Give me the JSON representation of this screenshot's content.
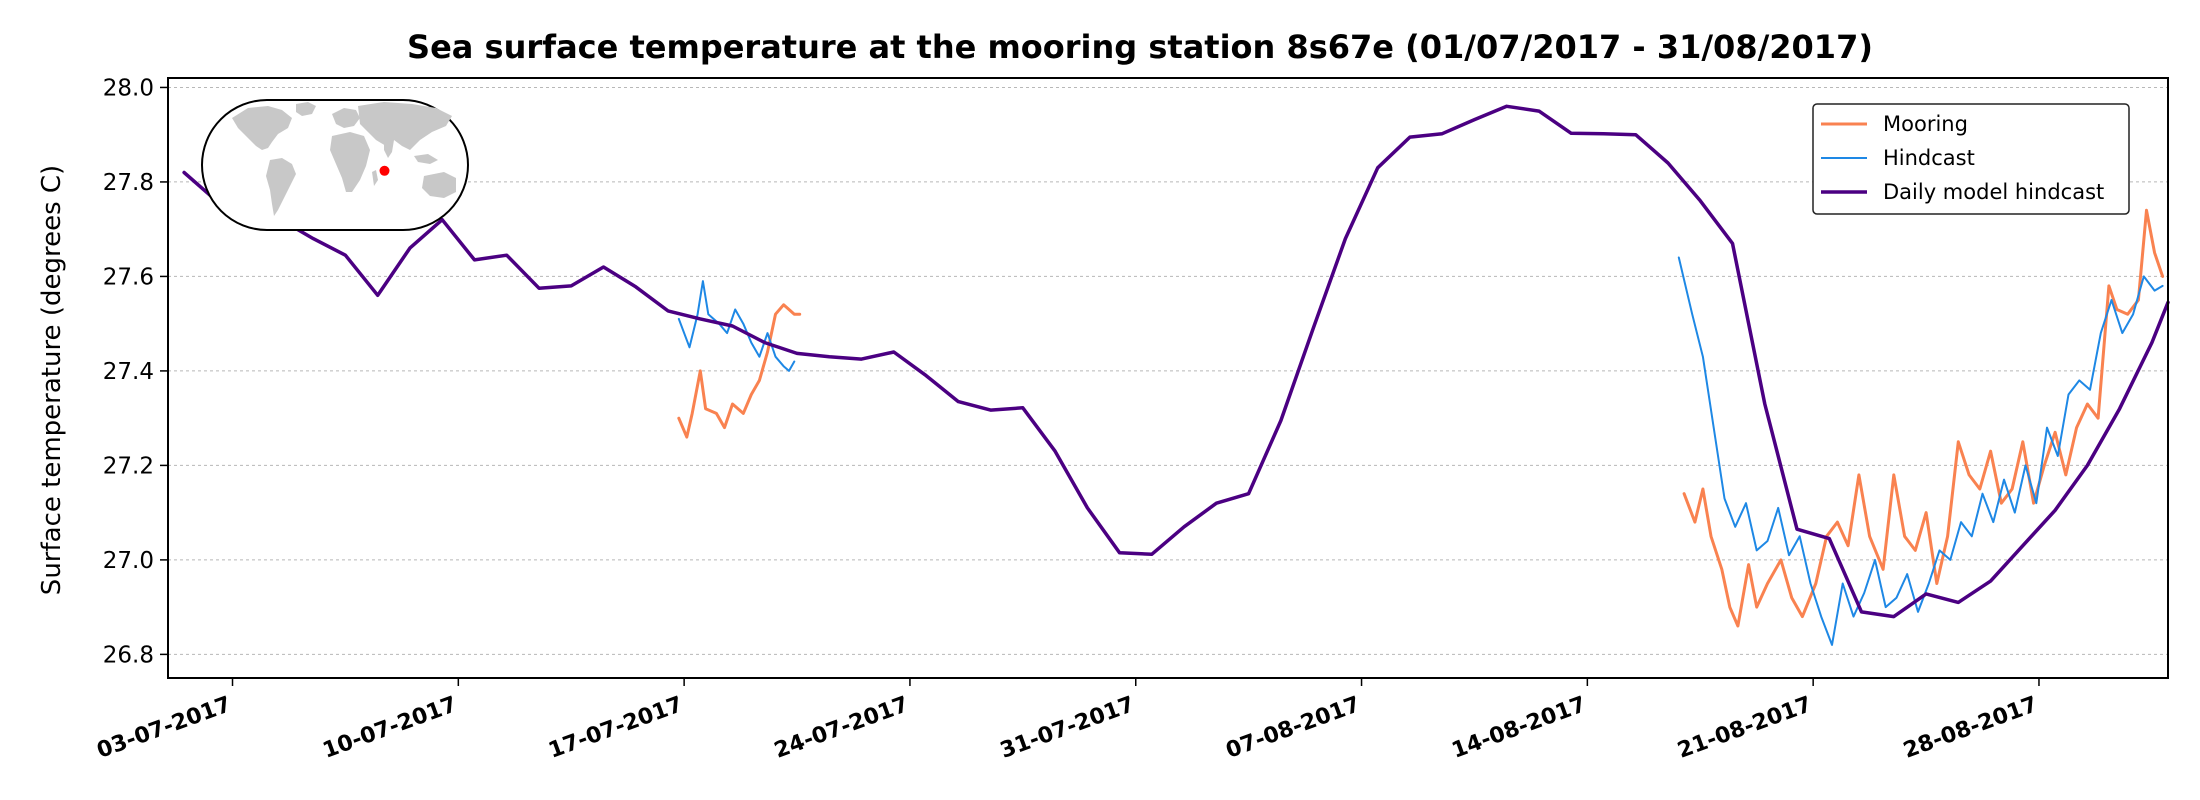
{
  "chart_data": {
    "type": "line",
    "title": "Sea surface temperature at the mooring station 8s67e (01/07/2017 - 31/08/2017)",
    "xlabel": "",
    "ylabel": "Surface temperature (degrees C)",
    "xlim": [
      "2017-07-01T00:00",
      "2017-09-01T00:00"
    ],
    "ylim": [
      26.75,
      28.02
    ],
    "yticks": [
      "26.8",
      "27.0",
      "27.2",
      "27.4",
      "27.6",
      "27.8",
      "28.0"
    ],
    "xticks": [
      {
        "date": "2017-07-03",
        "label": "03-07-2017"
      },
      {
        "date": "2017-07-10",
        "label": "10-07-2017"
      },
      {
        "date": "2017-07-17",
        "label": "17-07-2017"
      },
      {
        "date": "2017-07-24",
        "label": "24-07-2017"
      },
      {
        "date": "2017-07-31",
        "label": "31-07-2017"
      },
      {
        "date": "2017-08-07",
        "label": "07-08-2017"
      },
      {
        "date": "2017-08-14",
        "label": "14-08-2017"
      },
      {
        "date": "2017-08-21",
        "label": "21-08-2017"
      },
      {
        "date": "2017-08-28",
        "label": "28-08-2017"
      }
    ],
    "grid": "horizontal-dotted",
    "legend_position": "top-right",
    "inset_map": {
      "marker_lon": 67,
      "marker_lat": -8,
      "marker_color": "#ff0000",
      "land_color": "#c8c8c8"
    },
    "series": [
      {
        "name": "Mooring",
        "color": "#f98250",
        "points": [
          [
            "2017-07-16T20:00",
            27.3
          ],
          [
            "2017-07-17T02:00",
            27.26
          ],
          [
            "2017-07-17T06:00",
            27.31
          ],
          [
            "2017-07-17T12:00",
            27.4
          ],
          [
            "2017-07-17T16:00",
            27.32
          ],
          [
            "2017-07-18T00:00",
            27.31
          ],
          [
            "2017-07-18T06:00",
            27.28
          ],
          [
            "2017-07-18T12:00",
            27.33
          ],
          [
            "2017-07-18T20:00",
            27.31
          ],
          [
            "2017-07-19T02:00",
            27.35
          ],
          [
            "2017-07-19T08:00",
            27.38
          ],
          [
            "2017-07-19T14:00",
            27.44
          ],
          [
            "2017-07-19T20:00",
            27.52
          ],
          [
            "2017-07-20T02:00",
            27.54
          ],
          [
            "2017-07-20T06:00",
            27.53
          ],
          [
            "2017-07-20T10:00",
            27.52
          ],
          [
            "2017-07-20T14:00",
            27.52
          ],
          null,
          [
            "2017-08-17T00:00",
            27.14
          ],
          [
            "2017-08-17T08:00",
            27.08
          ],
          [
            "2017-08-17T14:00",
            27.15
          ],
          [
            "2017-08-17T20:00",
            27.05
          ],
          [
            "2017-08-18T04:00",
            26.98
          ],
          [
            "2017-08-18T10:00",
            26.9
          ],
          [
            "2017-08-18T16:00",
            26.86
          ],
          [
            "2017-08-19T00:00",
            26.99
          ],
          [
            "2017-08-19T06:00",
            26.9
          ],
          [
            "2017-08-19T14:00",
            26.95
          ],
          [
            "2017-08-20T00:00",
            27.0
          ],
          [
            "2017-08-20T08:00",
            26.92
          ],
          [
            "2017-08-20T16:00",
            26.88
          ],
          [
            "2017-08-21T02:00",
            26.95
          ],
          [
            "2017-08-21T10:00",
            27.05
          ],
          [
            "2017-08-21T18:00",
            27.08
          ],
          [
            "2017-08-22T02:00",
            27.03
          ],
          [
            "2017-08-22T10:00",
            27.18
          ],
          [
            "2017-08-22T18:00",
            27.05
          ],
          [
            "2017-08-23T04:00",
            26.98
          ],
          [
            "2017-08-23T12:00",
            27.18
          ],
          [
            "2017-08-23T20:00",
            27.05
          ],
          [
            "2017-08-24T04:00",
            27.02
          ],
          [
            "2017-08-24T12:00",
            27.1
          ],
          [
            "2017-08-24T20:00",
            26.95
          ],
          [
            "2017-08-25T04:00",
            27.05
          ],
          [
            "2017-08-25T12:00",
            27.25
          ],
          [
            "2017-08-25T20:00",
            27.18
          ],
          [
            "2017-08-26T04:00",
            27.15
          ],
          [
            "2017-08-26T12:00",
            27.23
          ],
          [
            "2017-08-26T20:00",
            27.12
          ],
          [
            "2017-08-27T04:00",
            27.15
          ],
          [
            "2017-08-27T12:00",
            27.25
          ],
          [
            "2017-08-27T20:00",
            27.12
          ],
          [
            "2017-08-28T04:00",
            27.2
          ],
          [
            "2017-08-28T12:00",
            27.27
          ],
          [
            "2017-08-28T20:00",
            27.18
          ],
          [
            "2017-08-29T04:00",
            27.28
          ],
          [
            "2017-08-29T12:00",
            27.33
          ],
          [
            "2017-08-29T20:00",
            27.3
          ],
          [
            "2017-08-30T04:00",
            27.58
          ],
          [
            "2017-08-30T10:00",
            27.53
          ],
          [
            "2017-08-30T18:00",
            27.52
          ],
          [
            "2017-08-31T02:00",
            27.55
          ],
          [
            "2017-08-31T08:00",
            27.74
          ],
          [
            "2017-08-31T14:00",
            27.65
          ],
          [
            "2017-08-31T20:00",
            27.6
          ]
        ]
      },
      {
        "name": "Hindcast",
        "color": "#1e88e5",
        "points": [
          [
            "2017-07-16T20:00",
            27.51
          ],
          [
            "2017-07-17T04:00",
            27.45
          ],
          [
            "2017-07-17T10:00",
            27.52
          ],
          [
            "2017-07-17T14:00",
            27.59
          ],
          [
            "2017-07-17T18:00",
            27.52
          ],
          [
            "2017-07-18T02:00",
            27.5
          ],
          [
            "2017-07-18T08:00",
            27.48
          ],
          [
            "2017-07-18T14:00",
            27.53
          ],
          [
            "2017-07-18T20:00",
            27.5
          ],
          [
            "2017-07-19T02:00",
            27.46
          ],
          [
            "2017-07-19T08:00",
            27.43
          ],
          [
            "2017-07-19T14:00",
            27.48
          ],
          [
            "2017-07-19T20:00",
            27.43
          ],
          [
            "2017-07-20T02:00",
            27.41
          ],
          [
            "2017-07-20T06:00",
            27.4
          ],
          [
            "2017-07-20T10:00",
            27.42
          ],
          null,
          [
            "2017-08-16T20:00",
            27.64
          ],
          [
            "2017-08-17T06:00",
            27.52
          ],
          [
            "2017-08-17T14:00",
            27.43
          ],
          [
            "2017-08-17T22:00",
            27.28
          ],
          [
            "2017-08-18T06:00",
            27.13
          ],
          [
            "2017-08-18T14:00",
            27.07
          ],
          [
            "2017-08-18T22:00",
            27.12
          ],
          [
            "2017-08-19T06:00",
            27.02
          ],
          [
            "2017-08-19T14:00",
            27.04
          ],
          [
            "2017-08-19T22:00",
            27.11
          ],
          [
            "2017-08-20T06:00",
            27.01
          ],
          [
            "2017-08-20T14:00",
            27.05
          ],
          [
            "2017-08-20T22:00",
            26.95
          ],
          [
            "2017-08-21T06:00",
            26.88
          ],
          [
            "2017-08-21T14:00",
            26.82
          ],
          [
            "2017-08-21T22:00",
            26.95
          ],
          [
            "2017-08-22T06:00",
            26.88
          ],
          [
            "2017-08-22T14:00",
            26.93
          ],
          [
            "2017-08-22T22:00",
            27.0
          ],
          [
            "2017-08-23T06:00",
            26.9
          ],
          [
            "2017-08-23T14:00",
            26.92
          ],
          [
            "2017-08-23T22:00",
            26.97
          ],
          [
            "2017-08-24T06:00",
            26.89
          ],
          [
            "2017-08-24T14:00",
            26.95
          ],
          [
            "2017-08-24T22:00",
            27.02
          ],
          [
            "2017-08-25T06:00",
            27.0
          ],
          [
            "2017-08-25T14:00",
            27.08
          ],
          [
            "2017-08-25T22:00",
            27.05
          ],
          [
            "2017-08-26T06:00",
            27.14
          ],
          [
            "2017-08-26T14:00",
            27.08
          ],
          [
            "2017-08-26T22:00",
            27.17
          ],
          [
            "2017-08-27T06:00",
            27.1
          ],
          [
            "2017-08-27T14:00",
            27.2
          ],
          [
            "2017-08-27T22:00",
            27.12
          ],
          [
            "2017-08-28T06:00",
            27.28
          ],
          [
            "2017-08-28T14:00",
            27.22
          ],
          [
            "2017-08-28T22:00",
            27.35
          ],
          [
            "2017-08-29T06:00",
            27.38
          ],
          [
            "2017-08-29T14:00",
            27.36
          ],
          [
            "2017-08-29T22:00",
            27.48
          ],
          [
            "2017-08-30T06:00",
            27.55
          ],
          [
            "2017-08-30T14:00",
            27.48
          ],
          [
            "2017-08-30T22:00",
            27.52
          ],
          [
            "2017-08-31T06:00",
            27.6
          ],
          [
            "2017-08-31T14:00",
            27.57
          ],
          [
            "2017-08-31T20:00",
            27.58
          ]
        ]
      },
      {
        "name": "Daily model hindcast",
        "color": "#4b0082",
        "points": [
          [
            "2017-07-01T12:00",
            27.82
          ],
          [
            "2017-07-02T12:00",
            27.76
          ],
          [
            "2017-07-03T12:00",
            27.74
          ],
          [
            "2017-07-04T12:00",
            27.72
          ],
          [
            "2017-07-05T12:00",
            27.68
          ],
          [
            "2017-07-06T12:00",
            27.645
          ],
          [
            "2017-07-07T12:00",
            27.56
          ],
          [
            "2017-07-08T12:00",
            27.66
          ],
          [
            "2017-07-09T12:00",
            27.72
          ],
          [
            "2017-07-10T12:00",
            27.635
          ],
          [
            "2017-07-11T12:00",
            27.645
          ],
          [
            "2017-07-12T12:00",
            27.575
          ],
          [
            "2017-07-13T12:00",
            27.58
          ],
          [
            "2017-07-14T12:00",
            27.62
          ],
          [
            "2017-07-15T12:00",
            27.578
          ],
          [
            "2017-07-16T12:00",
            27.527
          ],
          [
            "2017-07-17T12:00",
            27.51
          ],
          [
            "2017-07-18T12:00",
            27.495
          ],
          [
            "2017-07-19T12:00",
            27.46
          ],
          [
            "2017-07-20T12:00",
            27.437
          ],
          [
            "2017-07-21T12:00",
            27.43
          ],
          [
            "2017-07-22T12:00",
            27.425
          ],
          [
            "2017-07-23T12:00",
            27.44
          ],
          [
            "2017-07-24T12:00",
            27.39
          ],
          [
            "2017-07-25T12:00",
            27.335
          ],
          [
            "2017-07-26T12:00",
            27.317
          ],
          [
            "2017-07-27T12:00",
            27.322
          ],
          [
            "2017-07-28T12:00",
            27.23
          ],
          [
            "2017-07-29T12:00",
            27.11
          ],
          [
            "2017-07-30T12:00",
            27.015
          ],
          [
            "2017-07-31T12:00",
            27.012
          ],
          [
            "2017-08-01T12:00",
            27.07
          ],
          [
            "2017-08-02T12:00",
            27.12
          ],
          [
            "2017-08-03T12:00",
            27.14
          ],
          [
            "2017-08-04T12:00",
            27.295
          ],
          [
            "2017-08-05T12:00",
            27.49
          ],
          [
            "2017-08-06T12:00",
            27.68
          ],
          [
            "2017-08-07T12:00",
            27.83
          ],
          [
            "2017-08-08T12:00",
            27.895
          ],
          [
            "2017-08-09T12:00",
            27.902
          ],
          [
            "2017-08-10T12:00",
            27.932
          ],
          [
            "2017-08-11T12:00",
            27.96
          ],
          [
            "2017-08-12T12:00",
            27.95
          ],
          [
            "2017-08-13T12:00",
            27.903
          ],
          [
            "2017-08-14T12:00",
            27.902
          ],
          [
            "2017-08-15T12:00",
            27.9
          ],
          [
            "2017-08-16T12:00",
            27.84
          ],
          [
            "2017-08-17T12:00",
            27.76
          ],
          [
            "2017-08-18T12:00",
            27.67
          ],
          [
            "2017-08-19T12:00",
            27.33
          ],
          [
            "2017-08-20T12:00",
            27.065
          ],
          [
            "2017-08-21T12:00",
            27.045
          ],
          [
            "2017-08-22T12:00",
            26.89
          ],
          [
            "2017-08-23T12:00",
            26.88
          ],
          [
            "2017-08-24T12:00",
            26.928
          ],
          [
            "2017-08-25T12:00",
            26.91
          ],
          [
            "2017-08-26T12:00",
            26.955
          ],
          [
            "2017-08-27T12:00",
            27.03
          ],
          [
            "2017-08-28T12:00",
            27.105
          ],
          [
            "2017-08-29T12:00",
            27.2
          ],
          [
            "2017-08-30T12:00",
            27.32
          ],
          [
            "2017-08-31T12:00",
            27.46
          ],
          [
            "2017-09-01T00:00",
            27.545
          ]
        ]
      }
    ]
  }
}
